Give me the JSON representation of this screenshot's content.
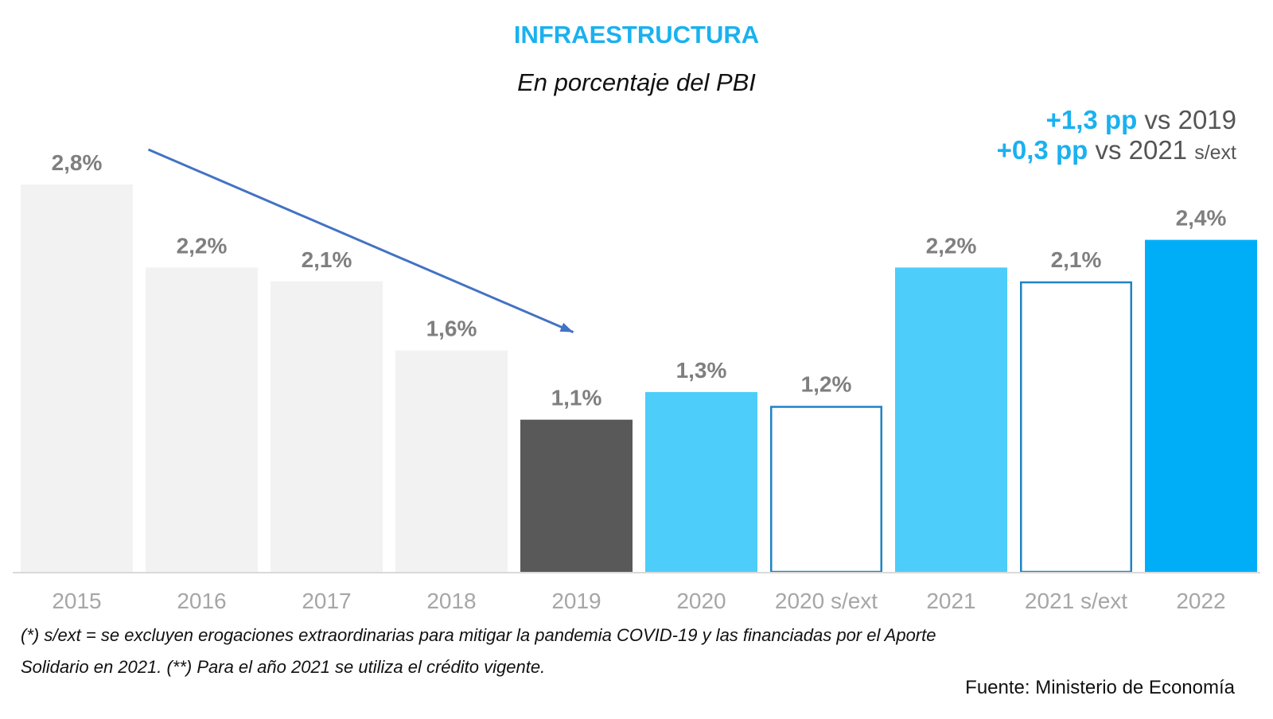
{
  "header": {
    "title": "INFRAESTRUCTURA",
    "subtitle": "En porcentaje del PBI"
  },
  "notes": [
    {
      "highlight": "+1,3 pp",
      "text": " vs 2019",
      "suffix": ""
    },
    {
      "highlight": "+0,3 pp",
      "text": " vs 2021 ",
      "suffix": "s/ext"
    }
  ],
  "footnotes": {
    "line1": "(*) s/ext = se excluyen erogaciones extraordinarias para mitigar la pandemia COVID-19 y las financiadas por el Aporte",
    "line2": "Solidario en 2021. (**) Para el año 2021 se utiliza el crédito vigente."
  },
  "source": "Fuente: Ministerio de Economía",
  "chart_data": {
    "type": "bar",
    "title": "INFRAESTRUCTURA",
    "subtitle": "En porcentaje del PBI",
    "xlabel": "",
    "ylabel": "",
    "ylim": [
      0,
      2.8
    ],
    "grid": false,
    "categories": [
      "2015",
      "2016",
      "2017",
      "2018",
      "2019",
      "2020",
      "2020 s/ext",
      "2021",
      "2021 s/ext",
      "2022"
    ],
    "values": [
      2.8,
      2.2,
      2.1,
      1.6,
      1.1,
      1.3,
      1.2,
      2.2,
      2.1,
      2.4
    ],
    "data_labels": [
      "2,8%",
      "2,2%",
      "2,1%",
      "1,6%",
      "1,1%",
      "1,3%",
      "1,2%",
      "2,2%",
      "2,1%",
      "2,4%"
    ],
    "bar_styles": [
      "light-gray",
      "light-gray",
      "light-gray",
      "light-gray",
      "dark-gray",
      "light-blue",
      "outline-blue",
      "light-blue",
      "outline-blue",
      "blue"
    ],
    "colors": {
      "light-gray": "#f2f2f2",
      "dark-gray": "#595959",
      "light-blue": "#4dcdfa",
      "outline-blue": "#1f83c6",
      "blue": "#00aef8",
      "label": "#7f7f7f",
      "axis": "#d9d9d9",
      "arrow": "#4472c4"
    },
    "annotations": [
      {
        "type": "arrow",
        "from": "2015",
        "to": "2019",
        "meaning": "decline trend"
      }
    ]
  }
}
